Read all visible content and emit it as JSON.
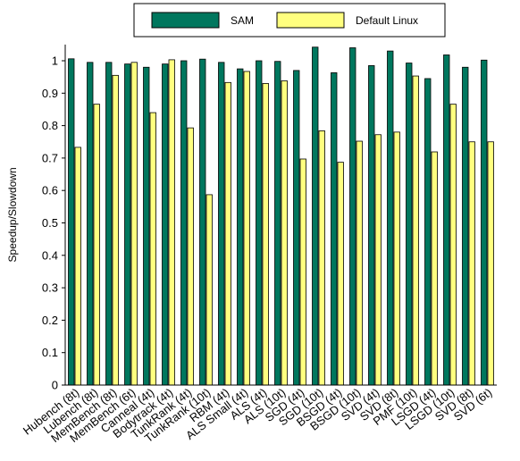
{
  "chart_data": {
    "type": "bar",
    "title": "",
    "xlabel": "",
    "ylabel": "Speedup/Slowdown",
    "ylim": [
      0,
      1.05
    ],
    "yticks": [
      0,
      0.1,
      0.2,
      0.3,
      0.4,
      0.5,
      0.6,
      0.7,
      0.8,
      0.9,
      1
    ],
    "ytick_labels": [
      "0",
      "0.1",
      "0.2",
      "0.3",
      "0.4",
      "0.5",
      "0.6",
      "0.7",
      "0.8",
      "0.9",
      "1"
    ],
    "grid": false,
    "legend_position": "top-center",
    "categories": [
      "Hubench (8t)",
      "Lubench (8t)",
      "MemBench (8t)",
      "MemBench (6t)",
      "Canneal (4t)",
      "Bodytrack (4t)",
      "TunkRank (4t)",
      "TunkRank (10t)",
      "RBM (4t)",
      "ALS Small (4t)",
      "ALS (4t)",
      "ALS (10t)",
      "SGD (4t)",
      "SGD (10t)",
      "BSGD (4t)",
      "BSGD (10t)",
      "SVD (4t)",
      "SVD (8t)",
      "PMF (10t)",
      "LSGD (4t)",
      "LSGD (10t)",
      "SVD (8t)",
      "SVD (6t)"
    ],
    "series": [
      {
        "name": "SAM",
        "color": "#00775e",
        "values": [
          1.006,
          0.995,
          0.995,
          0.99,
          0.98,
          0.99,
          1.0,
          1.005,
          0.995,
          0.975,
          1.0,
          0.998,
          0.97,
          1.042,
          0.963,
          1.04,
          0.985,
          1.03,
          0.993,
          0.945,
          1.018,
          0.98,
          1.002
        ]
      },
      {
        "name": "Default Linux",
        "color": "#ffff7f",
        "values": [
          0.733,
          0.866,
          0.955,
          0.995,
          0.84,
          1.003,
          0.793,
          0.587,
          0.933,
          0.967,
          0.93,
          0.938,
          0.697,
          0.784,
          0.687,
          0.752,
          0.772,
          0.78,
          0.953,
          0.719,
          0.866,
          0.75,
          0.75
        ]
      }
    ]
  }
}
